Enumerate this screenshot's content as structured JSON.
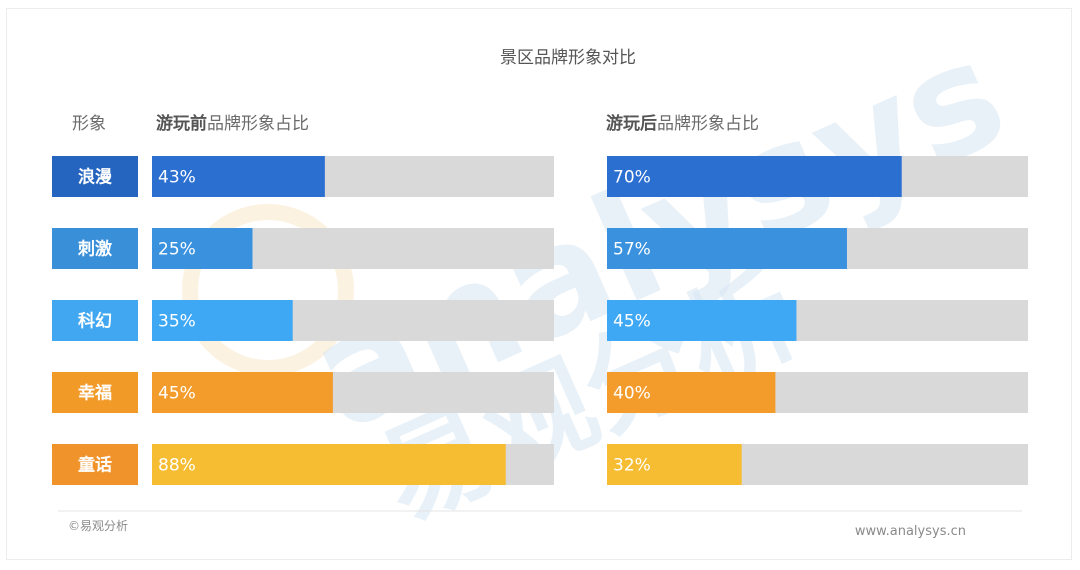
{
  "chart_data": {
    "type": "bar",
    "title": "景区品牌形象对比",
    "category_header": "形象",
    "categories": [
      "浪漫",
      "刺激",
      "科幻",
      "幸福",
      "童话"
    ],
    "category_colors": [
      "#2565c0",
      "#3a8fd9",
      "#41a7f0",
      "#f29a28",
      "#f0932a"
    ],
    "bar_colors": [
      "#2b6fd1",
      "#3a92df",
      "#3fa8f5",
      "#f39c2c",
      "#f7bd32"
    ],
    "track_color": "#d9d9d9",
    "xlim": [
      0,
      100
    ],
    "value_suffix": "%",
    "series": [
      {
        "header_bold": "游玩前",
        "header_rest": "品牌形象占比",
        "values": [
          43,
          25,
          35,
          45,
          88
        ]
      },
      {
        "header_bold": "游玩后",
        "header_rest": "品牌形象占比",
        "values": [
          70,
          57,
          45,
          40,
          32
        ]
      }
    ]
  },
  "watermark": {
    "latin": "analysys",
    "cn": "易观分析"
  },
  "footer": {
    "copyright": "©易观分析",
    "website": "www.analysys.cn"
  }
}
